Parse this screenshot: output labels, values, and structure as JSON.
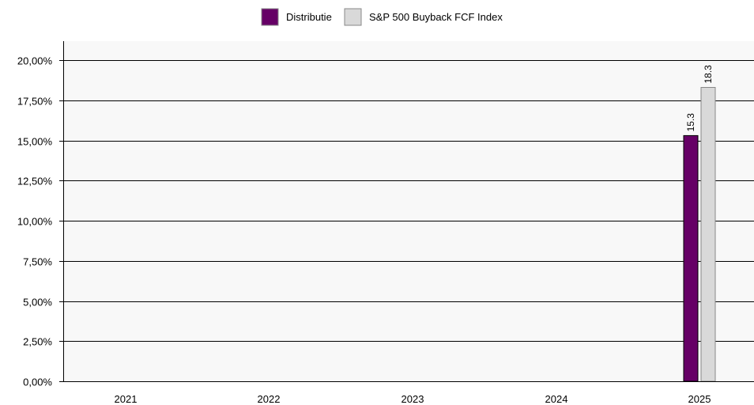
{
  "legend": {
    "items": [
      {
        "label": "Distributie",
        "color": "#660066"
      },
      {
        "label": "S&P 500 Buyback FCF Index",
        "color": "#d9d9d9"
      }
    ]
  },
  "colors": {
    "plot_background": "#f8f8f8",
    "gridline": "#000000",
    "series_1": "#660066",
    "series_2": "#d9d9d9"
  },
  "chart_data": {
    "type": "bar",
    "categories": [
      "2021",
      "2022",
      "2023",
      "2024",
      "2025"
    ],
    "series": [
      {
        "name": "Distributie",
        "values": [
          null,
          null,
          null,
          null,
          15.3
        ]
      },
      {
        "name": "S&P 500 Buyback FCF Index",
        "values": [
          null,
          null,
          null,
          null,
          18.3
        ]
      }
    ],
    "data_labels": [
      {
        "series": 0,
        "category": "2025",
        "text": "15.3"
      },
      {
        "series": 1,
        "category": "2025",
        "text": "18.3"
      }
    ],
    "y_ticks": [
      "0,00%",
      "2,50%",
      "5,00%",
      "7,50%",
      "10,00%",
      "12,50%",
      "15,00%",
      "17,50%",
      "20,00%"
    ],
    "y_tick_values": [
      0,
      2.5,
      5,
      7.5,
      10,
      12.5,
      15,
      17.5,
      20
    ],
    "ylim": [
      0,
      20
    ],
    "grid": true,
    "legend_position": "top-center",
    "title": "",
    "xlabel": "",
    "ylabel": ""
  }
}
